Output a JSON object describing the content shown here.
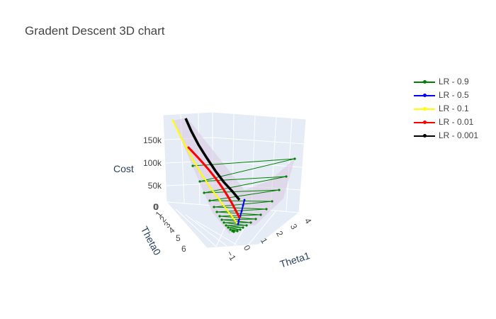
{
  "chart_data": {
    "type": "scatter3d",
    "title": "Gradent Descent 3D chart",
    "axes": {
      "x": {
        "title": "Theta0",
        "ticks": [
          "0",
          "1",
          "2",
          "3",
          "4",
          "5",
          "6"
        ]
      },
      "y": {
        "title": "Theta1",
        "ticks": [
          "−1",
          "0",
          "1",
          "2",
          "3",
          "4"
        ]
      },
      "z": {
        "title": "Cost",
        "ticks": [
          "0",
          "50k",
          "100k",
          "150k"
        ],
        "range": [
          0,
          190000
        ]
      }
    },
    "legend_position": "top-right",
    "series": [
      {
        "name": "LR - 0.9",
        "color": "#008000"
      },
      {
        "name": "LR - 0.5",
        "color": "#0000ff"
      },
      {
        "name": "LR - 0.1",
        "color": "#ffff00"
      },
      {
        "name": "LR - 0.01",
        "color": "#ff0000"
      },
      {
        "name": "LR - 0.001",
        "color": "#000000"
      }
    ],
    "surface_color": "#d8c8e0"
  }
}
